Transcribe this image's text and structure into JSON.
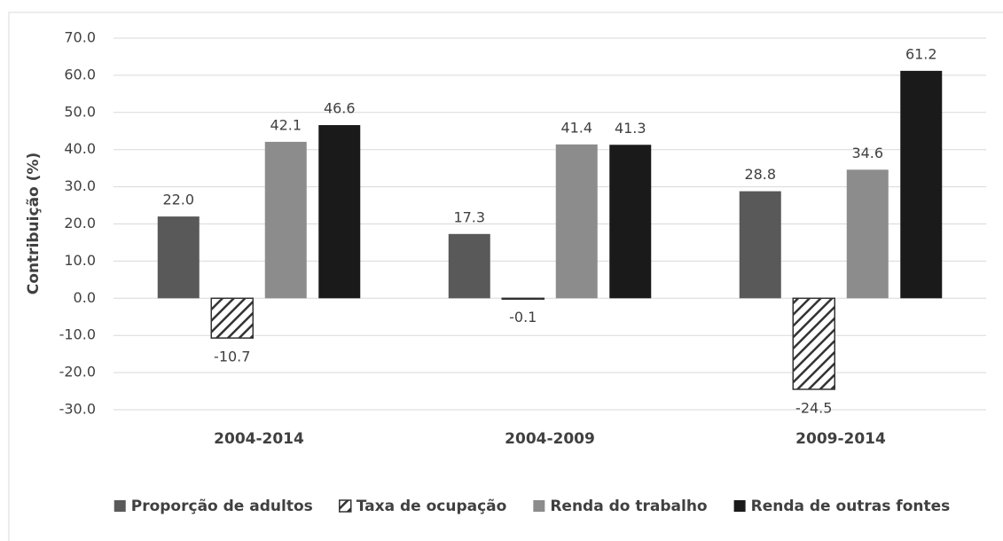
{
  "chart_data": {
    "type": "bar",
    "y_label": "Contribuição (%)",
    "categories": [
      "2004-2014",
      "2004-2009",
      "2009-2014"
    ],
    "series": [
      {
        "name": "Proporção de adultos",
        "color": "#595959",
        "values": [
          22.0,
          17.3,
          28.8
        ],
        "value_labels": [
          "22.0",
          "17.3",
          "28.8"
        ]
      },
      {
        "name": "Taxa de ocupação",
        "color": "#333333",
        "hatch": true,
        "values": [
          -10.7,
          -0.1,
          -24.5
        ],
        "value_labels": [
          "-10.7",
          "-0.1",
          "-24.5"
        ]
      },
      {
        "name": "Renda do trabalho",
        "color": "#8c8c8c",
        "values": [
          42.1,
          41.4,
          34.6
        ],
        "value_labels": [
          "42.1",
          "41.4",
          "34.6"
        ]
      },
      {
        "name": "Renda de outras fontes",
        "color": "#1a1a1a",
        "values": [
          46.6,
          41.3,
          61.2
        ],
        "value_labels": [
          "46.6",
          "41.3",
          "61.2"
        ]
      }
    ],
    "ylim": [
      -30,
      70
    ],
    "yticks": [
      {
        "value": -30,
        "label": "-30.0"
      },
      {
        "value": -20,
        "label": "-20.0"
      },
      {
        "value": -10,
        "label": "-10.0"
      },
      {
        "value": 0,
        "label": "0.0"
      },
      {
        "value": 10,
        "label": "10.0"
      },
      {
        "value": 20,
        "label": "20.0"
      },
      {
        "value": 30,
        "label": "30.0"
      },
      {
        "value": 40,
        "label": "40.0"
      },
      {
        "value": 50,
        "label": "50.0"
      },
      {
        "value": 60,
        "label": "60.0"
      },
      {
        "value": 70,
        "label": "70.0"
      }
    ],
    "grid": true,
    "legend": "bottom"
  }
}
